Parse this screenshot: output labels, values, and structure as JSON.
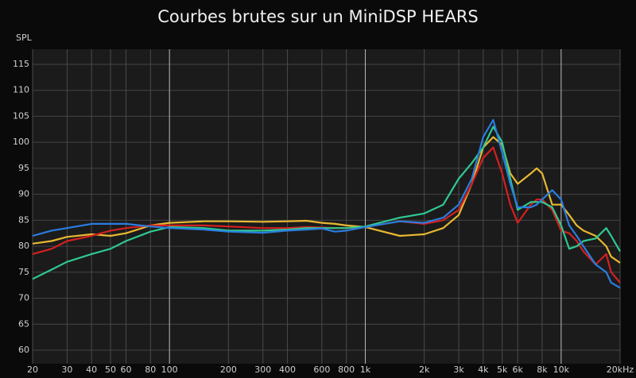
{
  "chart_data": {
    "type": "line",
    "title": "Courbes brutes sur un MiniDSP HEARS",
    "y_label": "SPL",
    "x_scale": "log",
    "grid": true,
    "x": [
      20,
      25,
      30,
      40,
      50,
      60,
      80,
      100,
      150,
      200,
      300,
      400,
      500,
      600,
      700,
      800,
      1000,
      1500,
      2000,
      2500,
      3000,
      3500,
      4000,
      4500,
      5000,
      5500,
      6000,
      7000,
      7500,
      8000,
      9000,
      10000,
      11000,
      12000,
      13000,
      15000,
      17000,
      18000,
      20000
    ],
    "xlim": [
      20,
      20000
    ],
    "xticks": [
      20,
      30,
      40,
      50,
      60,
      80,
      100,
      200,
      300,
      400,
      600,
      800,
      {
        "value": 1000,
        "label": "1k"
      },
      {
        "value": 2000,
        "label": "2k"
      },
      {
        "value": 3000,
        "label": "3k"
      },
      {
        "value": 4000,
        "label": "4k"
      },
      {
        "value": 5000,
        "label": "5k"
      },
      {
        "value": 6000,
        "label": "6k"
      },
      {
        "value": 8000,
        "label": "8k"
      },
      {
        "value": 10000,
        "label": "10k"
      },
      {
        "value": 20000,
        "label": "20kHz"
      }
    ],
    "ylim": [
      57.4,
      117.9
    ],
    "yticks": [
      60,
      65,
      70,
      75,
      80,
      85,
      90,
      95,
      100,
      105,
      110,
      115
    ],
    "series": [
      {
        "color": "#e8b830",
        "values": [
          80.5,
          81,
          81.8,
          82.3,
          82,
          82.5,
          84,
          84.5,
          84.8,
          84.8,
          84.7,
          84.8,
          84.9,
          84.5,
          84.3,
          84,
          83.7,
          82,
          82.3,
          83.5,
          86,
          92,
          99,
          101,
          99.5,
          94,
          92,
          94,
          95,
          94,
          88,
          88,
          86,
          84,
          83,
          82,
          80,
          78,
          76.8
        ]
      },
      {
        "color": "#d42020",
        "values": [
          78.5,
          79.5,
          81,
          82,
          83,
          83.5,
          84,
          84,
          84,
          83.8,
          83.5,
          83.5,
          83.7,
          83.6,
          83.5,
          83.5,
          83.7,
          84.8,
          84.3,
          85,
          87,
          92,
          97,
          99,
          94,
          88,
          84.5,
          88,
          89,
          89,
          87,
          83,
          82.5,
          81,
          79,
          76.5,
          78.5,
          75,
          73
        ]
      },
      {
        "color": "#2fc890",
        "values": [
          73.7,
          75.5,
          77,
          78.5,
          79.5,
          81,
          82.8,
          83.7,
          83.5,
          83,
          83,
          83.2,
          83.5,
          83.5,
          83.5,
          83.5,
          83.8,
          85.5,
          86.3,
          88,
          93,
          96,
          99,
          103,
          100,
          93,
          87,
          88.5,
          88.5,
          88.5,
          87.5,
          84,
          79.5,
          80,
          81,
          81.5,
          83.5,
          82,
          79
        ]
      },
      {
        "color": "#2a7de0",
        "values": [
          82,
          83,
          83.5,
          84.3,
          84.3,
          84.3,
          83.8,
          83.5,
          83.2,
          82.8,
          82.6,
          83,
          83.2,
          83.4,
          82.8,
          83,
          83.7,
          84.8,
          84.5,
          85.5,
          88,
          93,
          101,
          104.3,
          98,
          92,
          87.5,
          87.5,
          88,
          89,
          90.8,
          89,
          84,
          82,
          80,
          76.5,
          75,
          73,
          72
        ]
      }
    ]
  }
}
